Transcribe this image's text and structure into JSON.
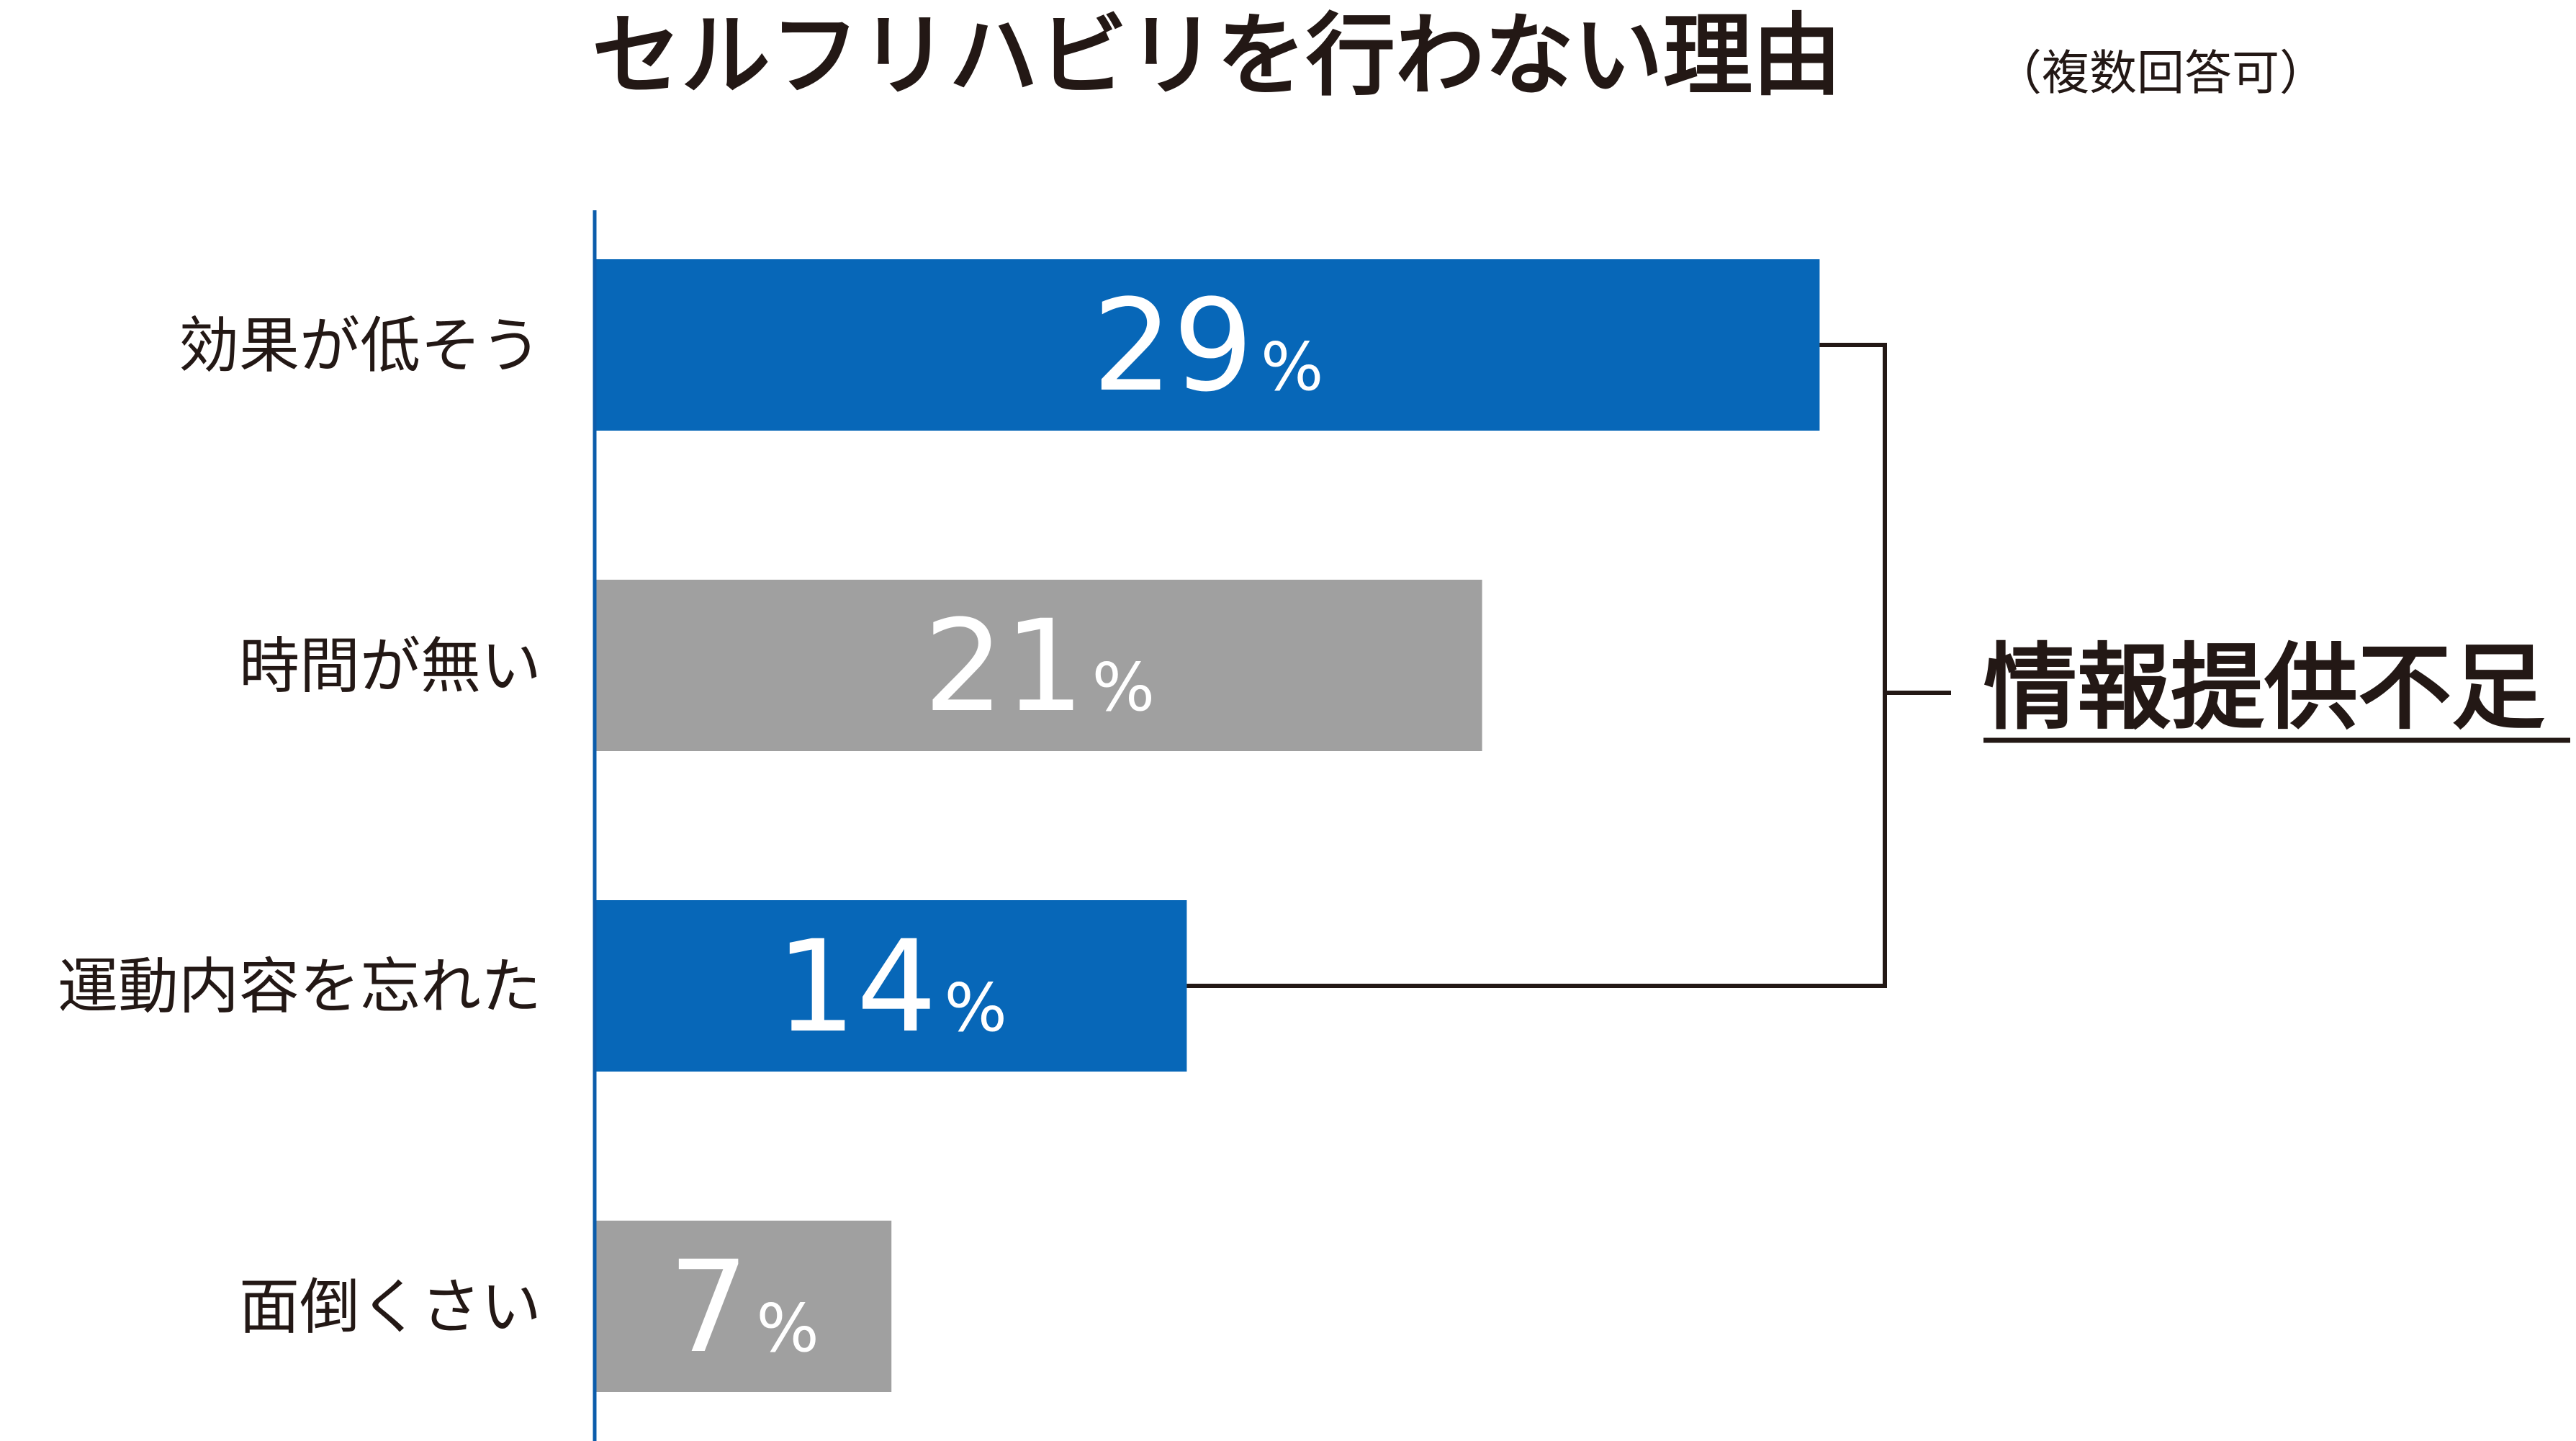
{
  "title": "セルフリハビリを行わない理由",
  "subtitle": "（複数回答可）",
  "colors": {
    "highlight": "#0767b8",
    "muted": "#a0a0a0",
    "axis": "#0b5cab",
    "text": "#231815",
    "bracket": "#231815"
  },
  "chart_data": {
    "type": "bar",
    "orientation": "horizontal",
    "categories": [
      "効果が低そう",
      "時間が無い",
      "運動内容を忘れた",
      "面倒くさい"
    ],
    "values": [
      29,
      21,
      14,
      7
    ],
    "unit": "%",
    "highlighted": [
      true,
      false,
      true,
      false
    ],
    "xlim": [
      0,
      33
    ],
    "grid": false,
    "title": "セルフリハビリを行わない理由",
    "subtitle": "（複数回答可）",
    "annotation": {
      "label": "情報提供不足",
      "spans_categories": [
        "効果が低そう",
        "運動内容を忘れた"
      ],
      "underlined": true
    }
  }
}
